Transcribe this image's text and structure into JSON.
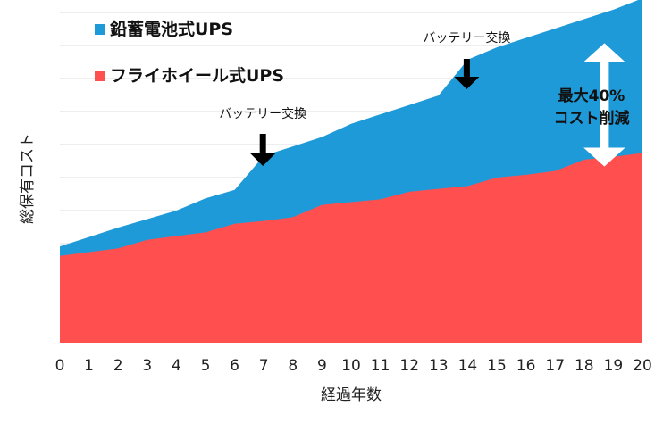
{
  "chart_data": {
    "type": "area",
    "x": [
      0,
      1,
      2,
      3,
      4,
      5,
      6,
      7,
      8,
      9,
      10,
      11,
      12,
      13,
      14,
      15,
      16,
      17,
      18,
      19,
      20
    ],
    "xlabel": "経過年数",
    "ylabel": "総保有コスト",
    "ylim": [
      0,
      350
    ],
    "grid": true,
    "series": [
      {
        "name": "鉛蓄電池式UPS",
        "color": "#1f9ad9",
        "values": [
          102,
          112,
          122,
          131,
          140,
          153,
          162,
          198,
          208,
          218,
          232,
          242,
          252,
          262,
          300,
          313,
          323,
          333,
          343,
          353,
          365
        ]
      },
      {
        "name": "フライホイール式UPS",
        "color": "#ff4f4f",
        "values": [
          92,
          96,
          100,
          109,
          113,
          117,
          126,
          129,
          133,
          146,
          149,
          152,
          160,
          163,
          166,
          175,
          178,
          182,
          194,
          197,
          201
        ]
      }
    ],
    "legend_position": "top-left",
    "annotations": [
      {
        "text": "バッテリー交換",
        "x": 7
      },
      {
        "text": "バッテリー交換",
        "x": 14
      }
    ],
    "callout": {
      "lines": [
        "最大40%",
        "コスト削減"
      ],
      "x": 19
    }
  }
}
